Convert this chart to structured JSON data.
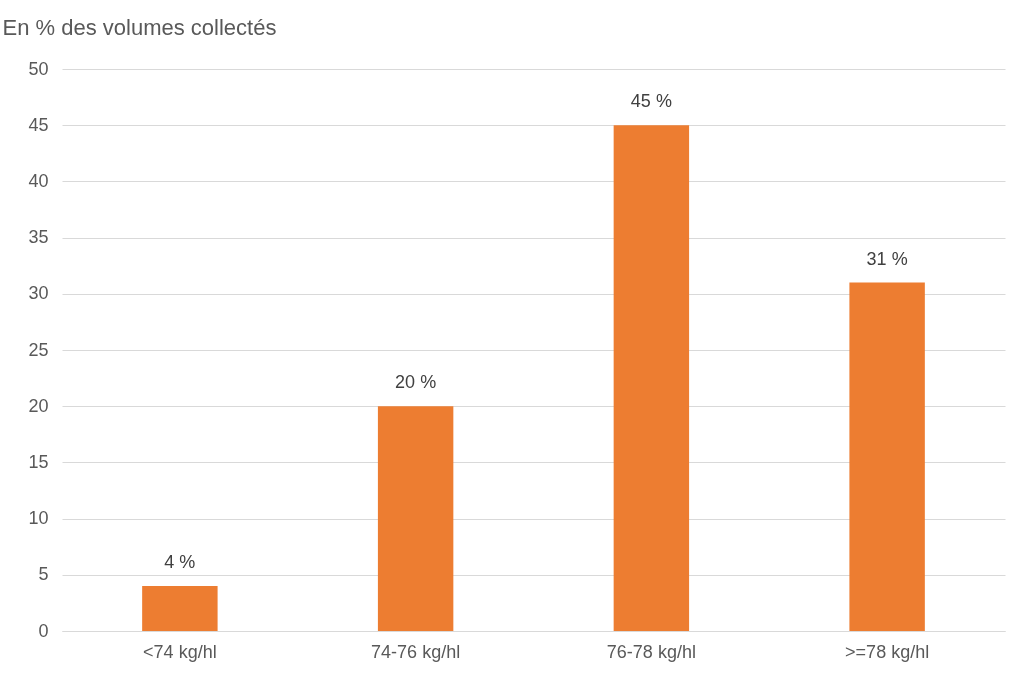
{
  "chart_data": {
    "type": "bar",
    "ylabel": "En % des volumes collectés",
    "categories": [
      "<74 kg/hl",
      "74-76 kg/hl",
      "76-78 kg/hl",
      ">=78 kg/hl"
    ],
    "values": [
      4,
      20,
      45,
      31
    ],
    "color": "#ed7d31",
    "value_labels": [
      "4 %",
      "20 %",
      "45 %",
      "31 %"
    ],
    "ylim": [
      0,
      50
    ],
    "yticks": [
      0,
      5,
      10,
      15,
      20,
      25,
      30,
      35,
      40,
      45,
      50
    ],
    "grid": "y"
  }
}
